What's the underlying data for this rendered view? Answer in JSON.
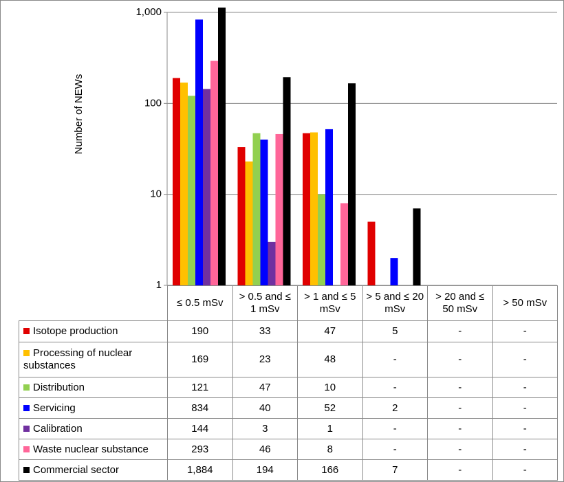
{
  "chart_data": {
    "type": "bar",
    "y_label": "Number of NEWs",
    "log_scale": true,
    "grid": true,
    "categories": [
      "≤ 0.5 mSv",
      "> 0.5 and ≤ 1 mSv",
      "> 1 and ≤ 5 mSv",
      "> 5 and ≤ 20 mSv",
      "> 20 and ≤ 50 mSv",
      "> 50 mSv"
    ],
    "ylim": [
      1,
      1000
    ],
    "yticks": [
      1,
      10,
      100,
      {
        "value": 1000,
        "label": "1,000"
      }
    ],
    "series": [
      {
        "name": "Isotope production",
        "color": "#e00000",
        "values": [
          190,
          33,
          47,
          5,
          null,
          null
        ],
        "value_labels": [
          "190",
          "33",
          "47",
          "5",
          "-",
          "-"
        ]
      },
      {
        "name": "Processing of nuclear substances",
        "color": "#ffc000",
        "values": [
          169,
          23,
          48,
          null,
          null,
          null
        ],
        "value_labels": [
          "169",
          "23",
          "48",
          "-",
          "-",
          "-"
        ]
      },
      {
        "name": "Distribution",
        "color": "#92d050",
        "values": [
          121,
          47,
          10,
          null,
          null,
          null
        ],
        "value_labels": [
          "121",
          "47",
          "10",
          "-",
          "-",
          "-"
        ]
      },
      {
        "name": "Servicing",
        "color": "#0000ff",
        "values": [
          834,
          40,
          52,
          2,
          null,
          null
        ],
        "value_labels": [
          "834",
          "40",
          "52",
          "2",
          "-",
          "-"
        ]
      },
      {
        "name": "Calibration",
        "color": "#7030a0",
        "values": [
          144,
          3,
          1,
          null,
          null,
          null
        ],
        "value_labels": [
          "144",
          "3",
          "1",
          "-",
          "-",
          "-"
        ]
      },
      {
        "name": "Waste nuclear substance",
        "color": "#ff6699",
        "values": [
          293,
          46,
          8,
          null,
          null,
          null
        ],
        "value_labels": [
          "293",
          "46",
          "8",
          "-",
          "-",
          "-"
        ]
      },
      {
        "name": "Commercial sector",
        "color": "#000000",
        "values": [
          1884,
          194,
          166,
          7,
          null,
          null
        ],
        "value_labels": [
          "1,884",
          "194",
          "166",
          "7",
          "-",
          "-"
        ]
      }
    ]
  }
}
